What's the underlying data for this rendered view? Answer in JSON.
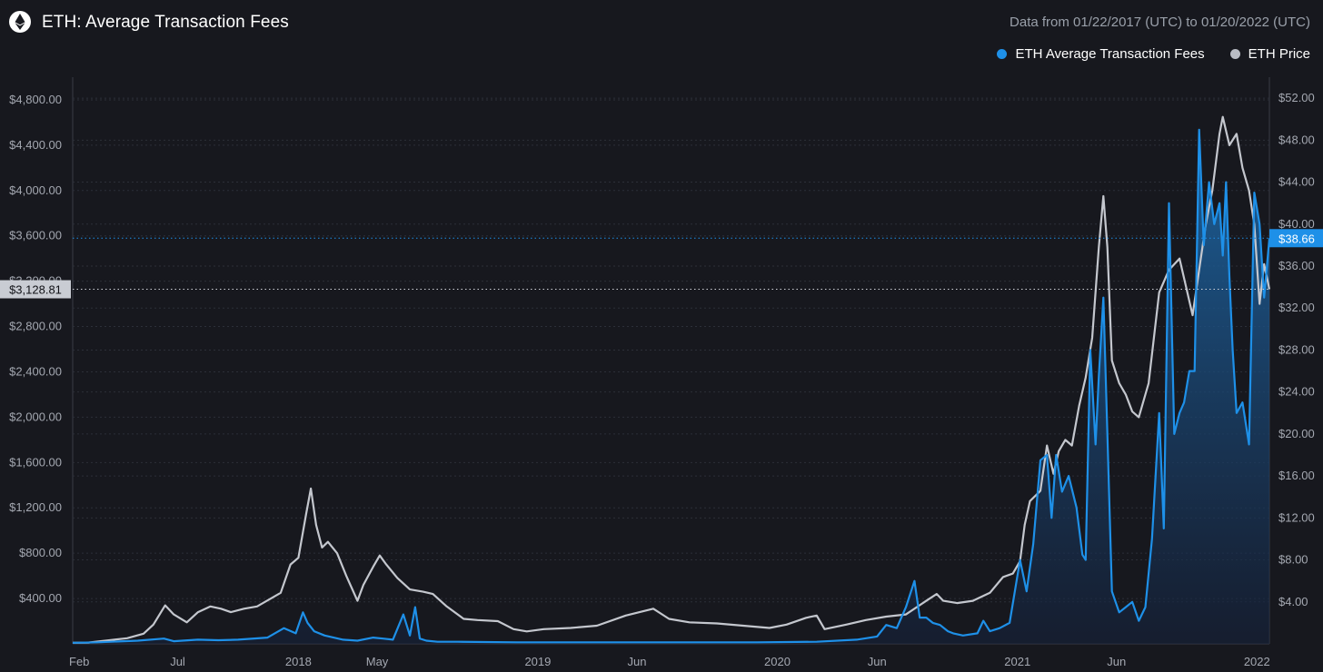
{
  "header": {
    "title": "ETH: Average Transaction Fees",
    "date_range": "Data from 01/22/2017 (UTC) to 01/20/2022 (UTC)",
    "logo_icon": "ethereum-icon"
  },
  "legend": [
    {
      "label": "ETH Average Transaction Fees",
      "color": "#1e90e8"
    },
    {
      "label": "ETH Price",
      "color": "#b9bcc4"
    }
  ],
  "chart_data": {
    "type": "line",
    "title": "ETH: Average Transaction Fees",
    "x_axis": {
      "tick_labels": [
        "Feb",
        "Jul",
        "2018",
        "May",
        "2019",
        "Jun",
        "2020",
        "Jun",
        "2021",
        "Jun",
        "2022"
      ],
      "tick_dates": [
        "2017-02-01",
        "2017-07-01",
        "2018-01-01",
        "2018-05-01",
        "2019-01-01",
        "2019-06-01",
        "2020-01-01",
        "2020-06-01",
        "2021-01-01",
        "2021-06-01",
        "2022-01-01"
      ],
      "range": [
        "2017-01-22",
        "2022-01-20"
      ]
    },
    "left_axis": {
      "series": "ETH Price",
      "ylim": [
        0,
        5000
      ],
      "ticks": [
        400,
        800,
        1200,
        1600,
        2000,
        2400,
        2800,
        3200,
        3600,
        4000,
        4400,
        4800
      ],
      "tick_labels": [
        "$400.00",
        "$800.00",
        "$1,200.00",
        "$1,600.00",
        "$2,000.00",
        "$2,400.00",
        "$2,800.00",
        "$3,200.00",
        "$3,600.00",
        "$4,000.00",
        "$4,400.00",
        "$4,800.00"
      ],
      "current_label": "$3,128.81",
      "current_value": 3128.81
    },
    "right_axis": {
      "series": "ETH Average Transaction Fees",
      "ylim": [
        0,
        54
      ],
      "ticks": [
        4,
        8,
        12,
        16,
        20,
        24,
        28,
        32,
        36,
        40,
        44,
        48,
        52
      ],
      "tick_labels": [
        "$4.00",
        "$8.00",
        "$12.00",
        "$16.00",
        "$20.00",
        "$24.00",
        "$28.00",
        "$32.00",
        "$36.00",
        "$40.00",
        "$44.00",
        "$48.00",
        "$52.00"
      ],
      "current_label": "$38.66",
      "current_value": 38.66
    },
    "grid": true,
    "legend_position": "top-right",
    "series": [
      {
        "name": "ETH Price",
        "color": "#c4c7ce",
        "axis": "left",
        "x": [
          "2017-01-22",
          "2017-02-15",
          "2017-03-15",
          "2017-04-15",
          "2017-05-10",
          "2017-05-25",
          "2017-06-12",
          "2017-06-25",
          "2017-07-15",
          "2017-08-01",
          "2017-08-20",
          "2017-09-05",
          "2017-09-20",
          "2017-10-10",
          "2017-10-30",
          "2017-11-20",
          "2017-12-05",
          "2017-12-20",
          "2018-01-01",
          "2018-01-13",
          "2018-01-20",
          "2018-01-28",
          "2018-02-06",
          "2018-02-15",
          "2018-03-01",
          "2018-03-15",
          "2018-04-01",
          "2018-04-10",
          "2018-04-25",
          "2018-05-05",
          "2018-05-15",
          "2018-06-01",
          "2018-06-20",
          "2018-07-10",
          "2018-07-25",
          "2018-08-15",
          "2018-09-10",
          "2018-10-01",
          "2018-11-01",
          "2018-11-25",
          "2018-12-15",
          "2019-01-10",
          "2019-02-20",
          "2019-04-01",
          "2019-05-15",
          "2019-06-26",
          "2019-07-20",
          "2019-08-20",
          "2019-10-01",
          "2019-11-10",
          "2019-12-20",
          "2020-01-15",
          "2020-02-14",
          "2020-03-01",
          "2020-03-13",
          "2020-04-15",
          "2020-05-15",
          "2020-06-15",
          "2020-07-15",
          "2020-08-15",
          "2020-08-31",
          "2020-09-10",
          "2020-10-01",
          "2020-10-25",
          "2020-11-20",
          "2020-12-10",
          "2020-12-25",
          "2021-01-05",
          "2021-01-12",
          "2021-01-20",
          "2021-02-05",
          "2021-02-15",
          "2021-02-25",
          "2021-03-05",
          "2021-03-15",
          "2021-03-25",
          "2021-04-05",
          "2021-04-15",
          "2021-04-25",
          "2021-05-05",
          "2021-05-12",
          "2021-05-18",
          "2021-05-25",
          "2021-06-05",
          "2021-06-15",
          "2021-06-25",
          "2021-07-05",
          "2021-07-20",
          "2021-08-05",
          "2021-08-20",
          "2021-09-05",
          "2021-09-15",
          "2021-09-25",
          "2021-10-05",
          "2021-10-15",
          "2021-10-25",
          "2021-11-05",
          "2021-11-10",
          "2021-11-20",
          "2021-12-01",
          "2021-12-10",
          "2021-12-20",
          "2021-12-28",
          "2022-01-05",
          "2022-01-12",
          "2022-01-20"
        ],
        "values": [
          10,
          11,
          30,
          50,
          90,
          170,
          340,
          260,
          190,
          280,
          330,
          310,
          280,
          310,
          330,
          400,
          450,
          700,
          760,
          1150,
          1370,
          1050,
          850,
          900,
          800,
          600,
          380,
          520,
          680,
          780,
          700,
          580,
          480,
          460,
          440,
          330,
          220,
          210,
          200,
          130,
          110,
          130,
          140,
          160,
          250,
          310,
          220,
          190,
          180,
          160,
          140,
          170,
          230,
          250,
          130,
          170,
          210,
          240,
          260,
          380,
          440,
          380,
          360,
          380,
          450,
          590,
          620,
          730,
          1050,
          1260,
          1350,
          1750,
          1500,
          1700,
          1800,
          1750,
          2100,
          2350,
          2700,
          3500,
          3950,
          3500,
          2500,
          2300,
          2200,
          2050,
          2000,
          2300,
          3100,
          3300,
          3400,
          3150,
          2900,
          3300,
          3700,
          4000,
          4500,
          4650,
          4400,
          4500,
          4200,
          4000,
          3700,
          3000,
          3350,
          3128.81
        ]
      },
      {
        "name": "ETH Average Transaction Fees",
        "color": "#1e90e8",
        "axis": "right",
        "x": [
          "2017-01-22",
          "2017-03-01",
          "2017-05-01",
          "2017-06-10",
          "2017-06-25",
          "2017-08-01",
          "2017-09-01",
          "2017-10-01",
          "2017-11-15",
          "2017-12-10",
          "2017-12-28",
          "2018-01-08",
          "2018-01-15",
          "2018-01-25",
          "2018-02-10",
          "2018-03-10",
          "2018-04-01",
          "2018-04-25",
          "2018-05-10",
          "2018-05-25",
          "2018-06-10",
          "2018-06-20",
          "2018-06-28",
          "2018-07-05",
          "2018-07-15",
          "2018-08-01",
          "2018-09-01",
          "2018-12-01",
          "2019-03-01",
          "2019-06-01",
          "2019-09-01",
          "2019-12-01",
          "2020-03-01",
          "2020-05-01",
          "2020-06-01",
          "2020-06-15",
          "2020-07-01",
          "2020-07-15",
          "2020-07-28",
          "2020-08-05",
          "2020-08-15",
          "2020-08-25",
          "2020-09-05",
          "2020-09-17",
          "2020-09-25",
          "2020-10-10",
          "2020-11-01",
          "2020-11-10",
          "2020-11-20",
          "2020-12-05",
          "2020-12-20",
          "2021-01-05",
          "2021-01-15",
          "2021-01-25",
          "2021-02-05",
          "2021-02-15",
          "2021-02-22",
          "2021-03-01",
          "2021-03-10",
          "2021-03-20",
          "2021-04-01",
          "2021-04-10",
          "2021-04-15",
          "2021-04-22",
          "2021-04-30",
          "2021-05-05",
          "2021-05-12",
          "2021-05-18",
          "2021-05-25",
          "2021-06-05",
          "2021-06-15",
          "2021-06-25",
          "2021-07-05",
          "2021-07-15",
          "2021-07-25",
          "2021-08-05",
          "2021-08-12",
          "2021-08-20",
          "2021-08-28",
          "2021-09-05",
          "2021-09-12",
          "2021-09-20",
          "2021-09-28",
          "2021-10-05",
          "2021-10-12",
          "2021-10-20",
          "2021-10-28",
          "2021-11-05",
          "2021-11-10",
          "2021-11-15",
          "2021-11-20",
          "2021-11-25",
          "2021-12-01",
          "2021-12-10",
          "2021-12-20",
          "2021-12-28",
          "2022-01-05",
          "2022-01-12",
          "2022-01-20"
        ],
        "values": [
          0.1,
          0.15,
          0.3,
          0.5,
          0.25,
          0.4,
          0.35,
          0.4,
          0.6,
          1.5,
          1.0,
          3.0,
          2.0,
          1.2,
          0.8,
          0.4,
          0.3,
          0.6,
          0.5,
          0.4,
          2.8,
          0.8,
          3.5,
          0.5,
          0.3,
          0.2,
          0.2,
          0.15,
          0.15,
          0.15,
          0.15,
          0.15,
          0.2,
          0.4,
          0.7,
          1.8,
          1.5,
          3.5,
          6.0,
          2.5,
          2.5,
          2.0,
          1.8,
          1.2,
          1.0,
          0.8,
          1.0,
          2.2,
          1.2,
          1.5,
          2.0,
          8.0,
          5.0,
          9.5,
          17.5,
          18.0,
          12.0,
          18.0,
          14.5,
          16.0,
          13.0,
          8.5,
          8.0,
          28.0,
          19.0,
          25.5,
          33.0,
          20.0,
          5.0,
          3.0,
          3.5,
          4.0,
          2.2,
          3.5,
          10.0,
          22.0,
          11.0,
          42.0,
          20.0,
          22.0,
          23.0,
          26.0,
          26.0,
          49.0,
          38.0,
          44.0,
          40.0,
          42.0,
          37.0,
          44.0,
          35.0,
          28.0,
          22.0,
          23.0,
          19.0,
          43.0,
          40.0,
          33.0,
          38.66
        ]
      }
    ]
  }
}
